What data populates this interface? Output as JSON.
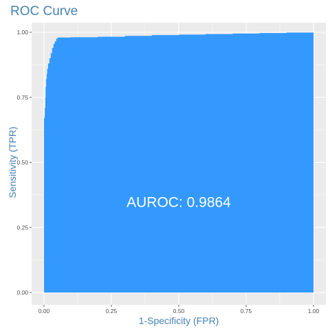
{
  "colors": {
    "panel_background": "#EBEBEB",
    "grid_line": "#FFFFFF",
    "area_fill": "#3399FF",
    "title_color": "#4682B4",
    "axis_title_color": "#4682B4",
    "tick_label_color": "#4D4D4D",
    "annotation_color": "#FFFFFF"
  },
  "chart_data": {
    "type": "area",
    "title": "ROC Curve",
    "xlabel": "1-Specificity (FPR)",
    "ylabel": "Sensitivity (TPR)",
    "xlim": [
      0,
      1
    ],
    "ylim": [
      0,
      1
    ],
    "x_ticks": [
      0,
      0.25,
      0.5,
      0.75,
      1
    ],
    "y_ticks": [
      0,
      0.25,
      0.5,
      0.75,
      1
    ],
    "x_tick_labels": [
      "0.00",
      "0.25",
      "0.50",
      "0.75",
      "1.00"
    ],
    "y_tick_labels": [
      "0.00",
      "0.25",
      "0.50",
      "0.75",
      "1.00"
    ],
    "grid": true,
    "annotation": {
      "text": "AUROC: 0.9864",
      "x": 0.5,
      "y": 0.35
    },
    "series": [
      {
        "x": [
          0,
          0,
          0.002,
          0.003,
          0.005,
          0.006,
          0.008,
          0.01,
          0.012,
          0.015,
          0.02,
          0.025,
          0.03,
          0.035,
          0.04,
          0.045,
          0.05,
          0.1,
          0.2,
          0.3,
          0.4,
          0.5,
          0.6,
          0.7,
          0.8,
          0.9,
          1.0
        ],
        "y": [
          0,
          0.67,
          0.68,
          0.71,
          0.75,
          0.79,
          0.82,
          0.84,
          0.86,
          0.88,
          0.9,
          0.92,
          0.94,
          0.955,
          0.965,
          0.975,
          0.98,
          0.981,
          0.983,
          0.986,
          0.989,
          0.991,
          0.993,
          0.995,
          0.997,
          0.999,
          1.0
        ]
      }
    ]
  }
}
